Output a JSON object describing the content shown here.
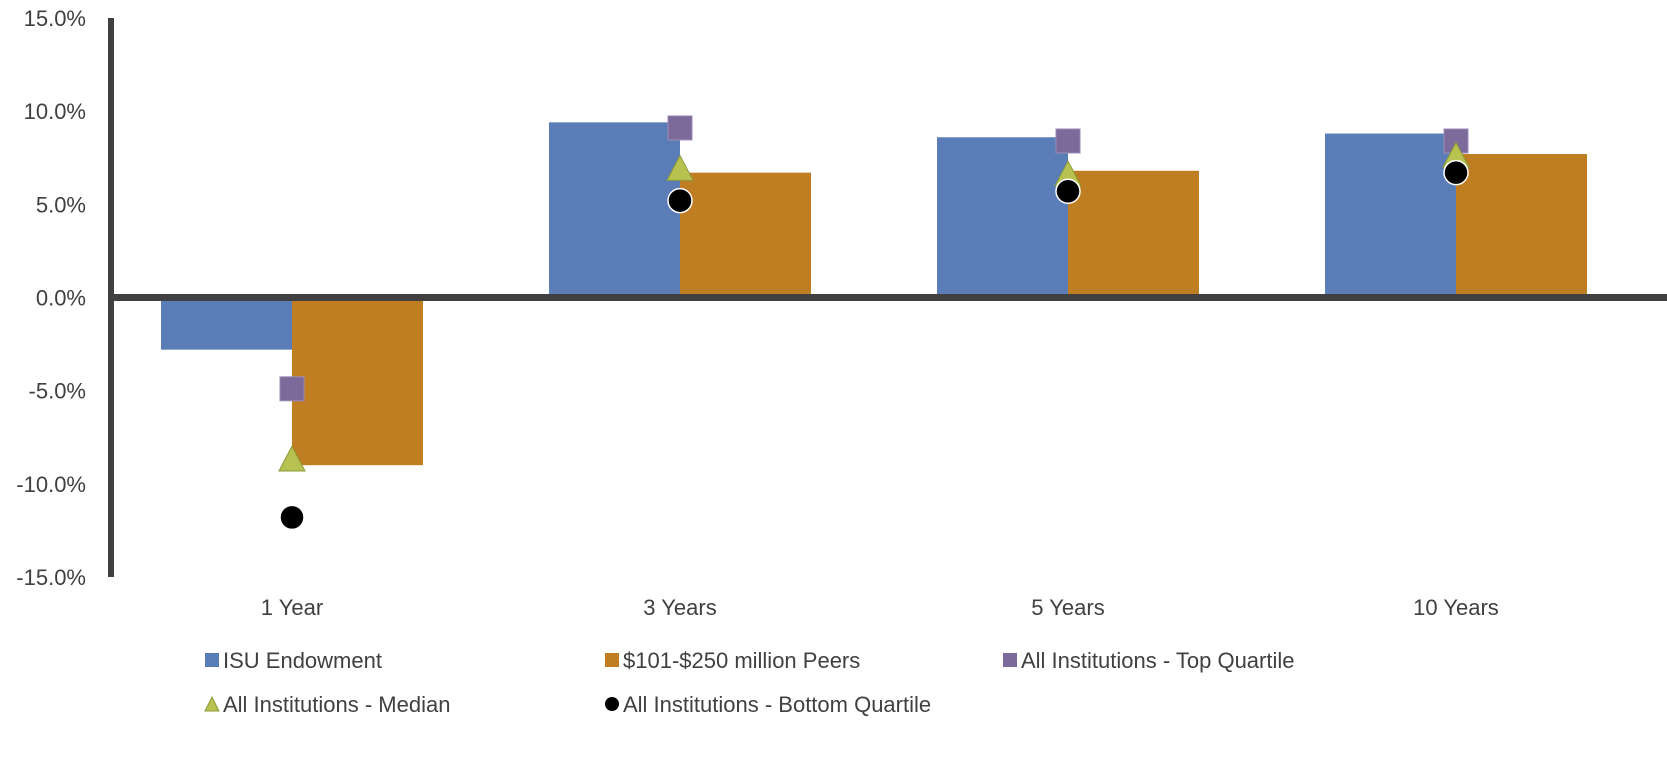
{
  "chart_data": {
    "type": "bar",
    "categories": [
      "1 Year",
      "3 Years",
      "5 Years",
      "10 Years"
    ],
    "series": [
      {
        "name": "ISU Endowment",
        "kind": "bar",
        "color": "#5B7DB7",
        "marker": "square",
        "values": [
          -2.8,
          9.4,
          8.6,
          8.8
        ]
      },
      {
        "name": "$101-$250 million Peers",
        "kind": "bar",
        "color": "#BF7E22",
        "marker": "square",
        "values": [
          -9.0,
          6.7,
          6.8,
          7.7
        ]
      },
      {
        "name": "All Institutions - Top Quartile",
        "kind": "marker",
        "color": "#7B6A9A",
        "marker": "square",
        "values": [
          -4.9,
          9.1,
          8.4,
          8.4
        ]
      },
      {
        "name": "All Institutions - Median",
        "kind": "marker",
        "color": "#B8C250",
        "marker": "triangle",
        "values": [
          -8.7,
          6.9,
          6.6,
          7.6
        ]
      },
      {
        "name": "All Institutions - Bottom Quartile",
        "kind": "marker",
        "color": "#000000",
        "marker": "circle",
        "values": [
          -11.8,
          5.2,
          5.7,
          6.7
        ]
      }
    ],
    "ylim": [
      -15,
      15
    ],
    "yticks": [
      15,
      10,
      5,
      0,
      -5,
      -10,
      -15
    ],
    "ytick_labels": [
      "15.0%",
      "10.0%",
      "5.0%",
      "0.0%",
      "-5.0%",
      "-10.0%",
      "-15.0%"
    ],
    "grid": false,
    "legend_position": "bottom",
    "title": "",
    "xlabel": "",
    "ylabel": ""
  }
}
